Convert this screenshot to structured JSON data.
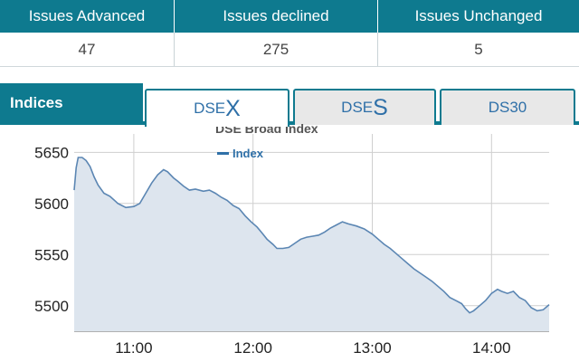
{
  "stats": {
    "headers": [
      "Issues Advanced",
      "Issues declined",
      "Issues Unchanged"
    ],
    "values": [
      "47",
      "275",
      "5"
    ]
  },
  "tabs": {
    "section_label": "Indices",
    "items": [
      {
        "prefix": "DSE",
        "big": "X",
        "active": true
      },
      {
        "prefix": "DSE",
        "big": "S",
        "active": false
      },
      {
        "plain": "DS30",
        "active": false
      }
    ]
  },
  "colors": {
    "accent": "#0e7a8f",
    "line": "#5b86b3",
    "area": "#dde5ee"
  },
  "chart_data": {
    "type": "area",
    "title": "DSE Broad Index",
    "series": [
      {
        "name": "Index",
        "points": [
          [
            "10:30",
            5613
          ],
          [
            "10:31",
            5635
          ],
          [
            "10:32",
            5645
          ],
          [
            "10:34",
            5645
          ],
          [
            "10:36",
            5642
          ],
          [
            "10:38",
            5636
          ],
          [
            "10:40",
            5626
          ],
          [
            "10:42",
            5618
          ],
          [
            "10:45",
            5610
          ],
          [
            "10:48",
            5607
          ],
          [
            "10:52",
            5600
          ],
          [
            "10:56",
            5596
          ],
          [
            "11:00",
            5597
          ],
          [
            "11:03",
            5600
          ],
          [
            "11:06",
            5610
          ],
          [
            "11:09",
            5620
          ],
          [
            "11:12",
            5628
          ],
          [
            "11:15",
            5633
          ],
          [
            "11:17",
            5631
          ],
          [
            "11:20",
            5625
          ],
          [
            "11:22",
            5622
          ],
          [
            "11:25",
            5617
          ],
          [
            "11:28",
            5613
          ],
          [
            "11:31",
            5614
          ],
          [
            "11:35",
            5612
          ],
          [
            "11:38",
            5613
          ],
          [
            "11:41",
            5610
          ],
          [
            "11:44",
            5606
          ],
          [
            "11:47",
            5603
          ],
          [
            "11:50",
            5598
          ],
          [
            "11:53",
            5595
          ],
          [
            "11:56",
            5588
          ],
          [
            "11:59",
            5582
          ],
          [
            "12:02",
            5577
          ],
          [
            "12:05",
            5570
          ],
          [
            "12:07",
            5565
          ],
          [
            "12:10",
            5560
          ],
          [
            "12:12",
            5556
          ],
          [
            "12:15",
            5556
          ],
          [
            "12:18",
            5557
          ],
          [
            "12:21",
            5561
          ],
          [
            "12:24",
            5565
          ],
          [
            "12:27",
            5567
          ],
          [
            "12:30",
            5568
          ],
          [
            "12:33",
            5569
          ],
          [
            "12:36",
            5572
          ],
          [
            "12:39",
            5576
          ],
          [
            "12:42",
            5579
          ],
          [
            "12:45",
            5582
          ],
          [
            "12:48",
            5580
          ],
          [
            "12:52",
            5578
          ],
          [
            "12:56",
            5575
          ],
          [
            "13:00",
            5570
          ],
          [
            "13:03",
            5565
          ],
          [
            "13:06",
            5560
          ],
          [
            "13:09",
            5556
          ],
          [
            "13:12",
            5551
          ],
          [
            "13:15",
            5546
          ],
          [
            "13:18",
            5541
          ],
          [
            "13:21",
            5536
          ],
          [
            "13:24",
            5532
          ],
          [
            "13:27",
            5528
          ],
          [
            "13:30",
            5524
          ],
          [
            "13:33",
            5519
          ],
          [
            "13:36",
            5514
          ],
          [
            "13:39",
            5508
          ],
          [
            "13:42",
            5505
          ],
          [
            "13:45",
            5502
          ],
          [
            "13:47",
            5497
          ],
          [
            "13:49",
            5493
          ],
          [
            "13:51",
            5495
          ],
          [
            "13:54",
            5500
          ],
          [
            "13:57",
            5505
          ],
          [
            "14:00",
            5512
          ],
          [
            "14:03",
            5516
          ],
          [
            "14:05",
            5514
          ],
          [
            "14:08",
            5512
          ],
          [
            "14:11",
            5514
          ],
          [
            "14:14",
            5508
          ],
          [
            "14:17",
            5505
          ],
          [
            "14:20",
            5498
          ],
          [
            "14:23",
            5495
          ],
          [
            "14:26",
            5496
          ],
          [
            "14:29",
            5501
          ]
        ]
      }
    ],
    "x_ticks": [
      "11:00",
      "12:00",
      "13:00",
      "14:00"
    ],
    "y_ticks": [
      5500,
      5550,
      5600,
      5650
    ],
    "ylim": [
      5475,
      5668
    ],
    "xlim": [
      "10:30",
      "14:29"
    ],
    "grid": true,
    "legend_position": "top-left"
  }
}
